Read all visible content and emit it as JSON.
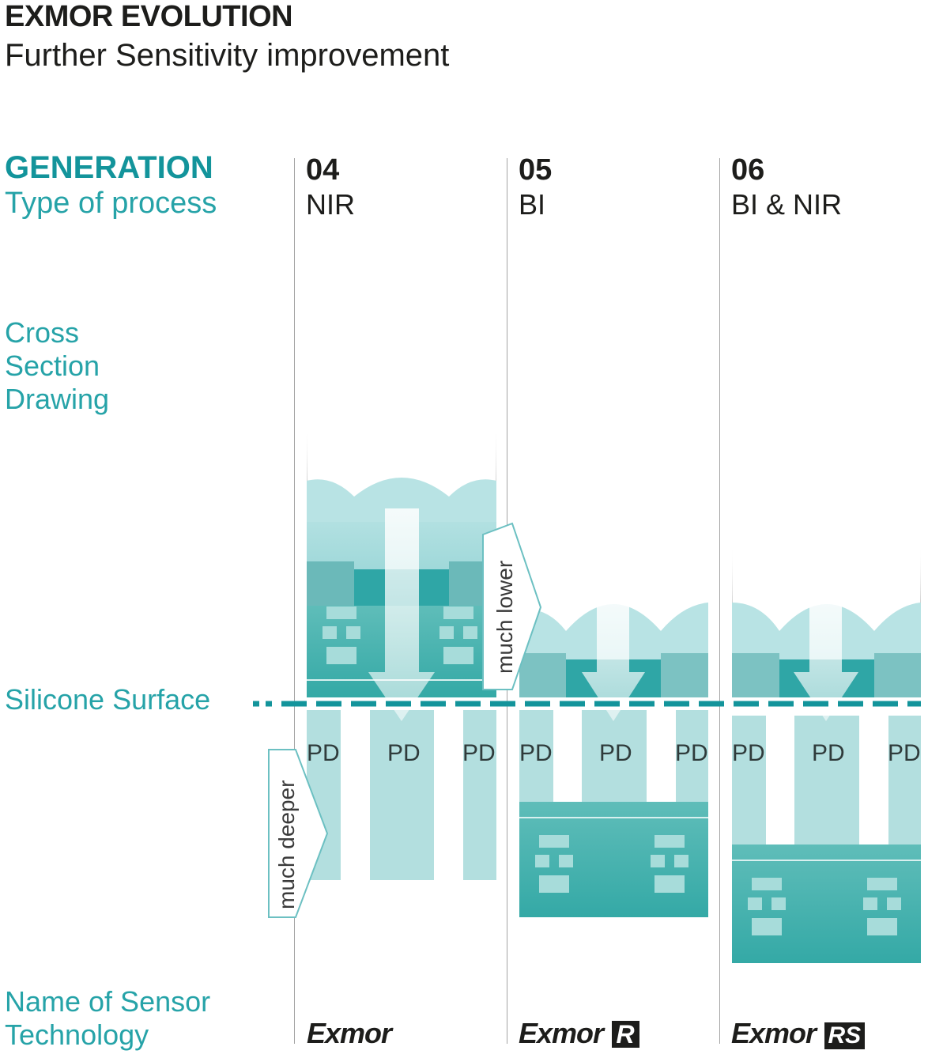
{
  "header": {
    "title": "EXMOR EVOLUTION",
    "subtitle": "Further Sensitivity improvement"
  },
  "rows": {
    "generation": "GENERATION",
    "process": "Type of process",
    "cross_section": [
      "Cross",
      "Section",
      "Drawing"
    ],
    "silicone": "Silicone Surface",
    "sensor_name": [
      "Name of Sensor",
      "Technology"
    ]
  },
  "generations": [
    {
      "number": "04",
      "process": "NIR",
      "sensor": "Exmor"
    },
    {
      "number": "05",
      "process": "BI",
      "sensor": "Exmor",
      "badge": "R"
    },
    {
      "number": "06",
      "process": "BI & NIR",
      "sensor": "Exmor",
      "badge": "RS"
    }
  ],
  "annotations": {
    "lower": "much lower",
    "deeper": "much deeper",
    "pd": "PD"
  },
  "colors": {
    "teal": "#26a3a8",
    "teal_dark": "#13949b",
    "lens_light": "#b7e2e3",
    "pd_fill": "#b3dfdf",
    "circuit": "#3aaeaa",
    "text": "#1d1d1b"
  }
}
